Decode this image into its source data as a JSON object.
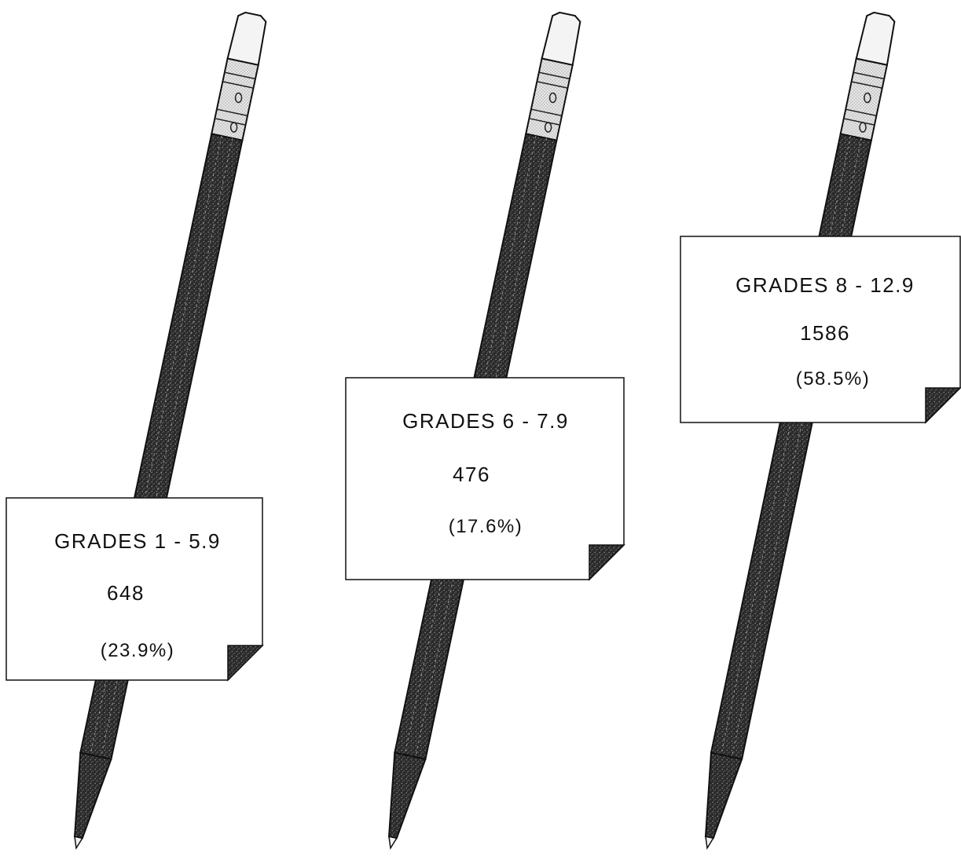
{
  "chart_data": {
    "type": "bar",
    "title": "",
    "categories": [
      "GRADES 1 - 5.9",
      "GRADES 6 - 7.9",
      "GRADES 8 - 12.9"
    ],
    "values": [
      648,
      476,
      1586
    ],
    "percent_labels": [
      "(23.9%)",
      "(17.6%)",
      "(58.5%)"
    ],
    "value_labels": [
      "648",
      "476",
      "1586"
    ],
    "colors": {
      "pencil_body": "#3a3a3a",
      "eraser": "#f4f4f4",
      "ferrule": "#cfcfcf",
      "card": "#ffffff",
      "fold": "#1a1a1a"
    }
  }
}
